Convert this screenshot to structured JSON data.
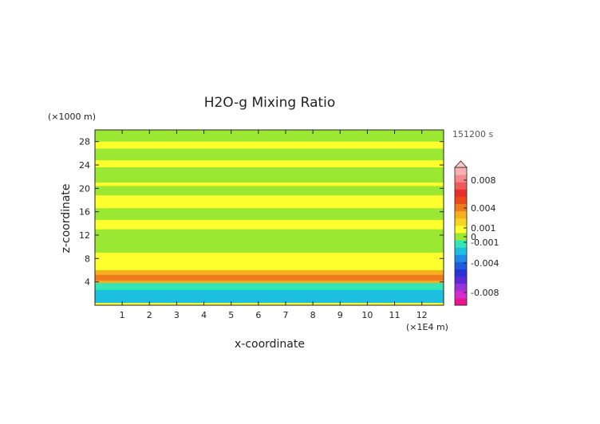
{
  "chart_data": {
    "type": "heatmap",
    "title": "H2O-g Mixing Ratio",
    "xlabel": "x-coordinate",
    "ylabel": "z-coordinate",
    "x_unit": "(×1E4 m)",
    "y_unit": "(×1000 m)",
    "time_label": "151200 s",
    "xlim": [
      0,
      12.8
    ],
    "ylim": [
      0,
      30
    ],
    "x_ticks": [
      1,
      2,
      3,
      4,
      5,
      6,
      7,
      8,
      9,
      10,
      11,
      12
    ],
    "y_ticks": [
      4,
      8,
      12,
      16,
      20,
      24,
      28
    ],
    "background_color": "#ffff2e",
    "regions": [
      {
        "level": "0 to 0.001",
        "color": "#ffff2e",
        "band": [
          0,
          30
        ]
      },
      {
        "level": "-0.001 to 0",
        "color": "#9be832",
        "band": [
          28.0,
          30.0
        ]
      },
      {
        "level": "-0.001 to 0",
        "color": "#9be832",
        "band": [
          24.8,
          26.8
        ]
      },
      {
        "level": "-0.001 to 0",
        "color": "#9be832",
        "band": [
          21.0,
          23.6
        ]
      },
      {
        "level": "-0.001 to 0",
        "color": "#9be832",
        "band": [
          18.8,
          20.4
        ]
      },
      {
        "level": "-0.001 to 0",
        "color": "#9be832",
        "band": [
          14.6,
          16.6
        ]
      },
      {
        "level": "-0.001 to 0",
        "color": "#9be832",
        "band": [
          9.0,
          13.0
        ]
      },
      {
        "level": "-0.001 to 0",
        "color": "#9be832",
        "band": [
          3.2,
          5.4
        ]
      },
      {
        "level": "-0.002 to -0.001",
        "color": "#33e6b4",
        "band": [
          2.4,
          5.2
        ]
      },
      {
        "level": "-0.003 to -0.002",
        "color": "#1cbfe0",
        "band": [
          0.4,
          2.6
        ]
      },
      {
        "level": "0.001 to 0.002",
        "color": "#f5b020",
        "band": [
          3.8,
          6.0
        ]
      },
      {
        "level": "0.002 to 0.003",
        "color": "#ef7a1e",
        "band": [
          4.2,
          5.2
        ]
      }
    ],
    "colorbar": {
      "labels": [
        "0.008",
        "0.004",
        "0.001",
        "0",
        "-0.001",
        "-0.004",
        "-0.008"
      ],
      "segments": [
        "#e8158f",
        "#d62ccf",
        "#9b32d9",
        "#5b2bd6",
        "#2834d6",
        "#1f5ce0",
        "#1c8ce6",
        "#1cbfe0",
        "#33e6b4",
        "#9be832",
        "#ffff2e",
        "#f5d520",
        "#f5b020",
        "#ef7a1e",
        "#ea4a18",
        "#e82d2d",
        "#ef5a5a",
        "#f58a8a",
        "#fab0b0"
      ]
    }
  }
}
